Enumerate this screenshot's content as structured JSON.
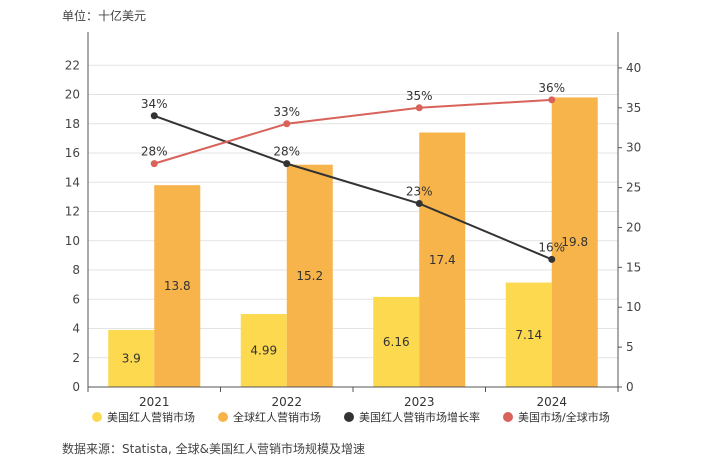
{
  "unit_label": "单位：十亿美元",
  "source_label": "数据来源：Statista, 全球&美国红人营销市场规模及增速",
  "chart_data": {
    "type": "bar",
    "categories": [
      "2021",
      "2022",
      "2023",
      "2024"
    ],
    "series": [
      {
        "name": "美国红人营销市场",
        "kind": "bar",
        "axis": "left",
        "color": "#fcd94e",
        "values": [
          3.9,
          4.99,
          6.16,
          7.14
        ],
        "labels": [
          "3.9",
          "4.99",
          "6.16",
          "7.14"
        ]
      },
      {
        "name": "全球红人营销市场",
        "kind": "bar",
        "axis": "left",
        "color": "#f7b44a",
        "values": [
          13.8,
          15.2,
          17.4,
          19.8
        ],
        "labels": [
          "13.8",
          "15.2",
          "17.4",
          "19.8"
        ]
      },
      {
        "name": "美国红人营销市场增长率",
        "kind": "line",
        "axis": "right",
        "color": "#333333",
        "values": [
          34,
          28,
          23,
          16
        ],
        "labels": [
          "34%",
          "28%",
          "23%",
          "16%"
        ]
      },
      {
        "name": "美国市场/全球市场",
        "kind": "line",
        "axis": "right",
        "color": "#d9625b",
        "values": [
          28,
          33,
          35,
          36
        ],
        "labels": [
          "28%",
          "33%",
          "35%",
          "36%"
        ]
      }
    ],
    "y_left": {
      "lim": [
        0,
        24
      ],
      "ticks": [
        0,
        2,
        4,
        6,
        8,
        10,
        12,
        14,
        16,
        18,
        20,
        22
      ]
    },
    "y_right": {
      "lim": [
        0,
        44
      ],
      "ticks": [
        0,
        5,
        10,
        15,
        20,
        25,
        30,
        35,
        40
      ]
    },
    "grid": true,
    "legend": "bottom"
  }
}
